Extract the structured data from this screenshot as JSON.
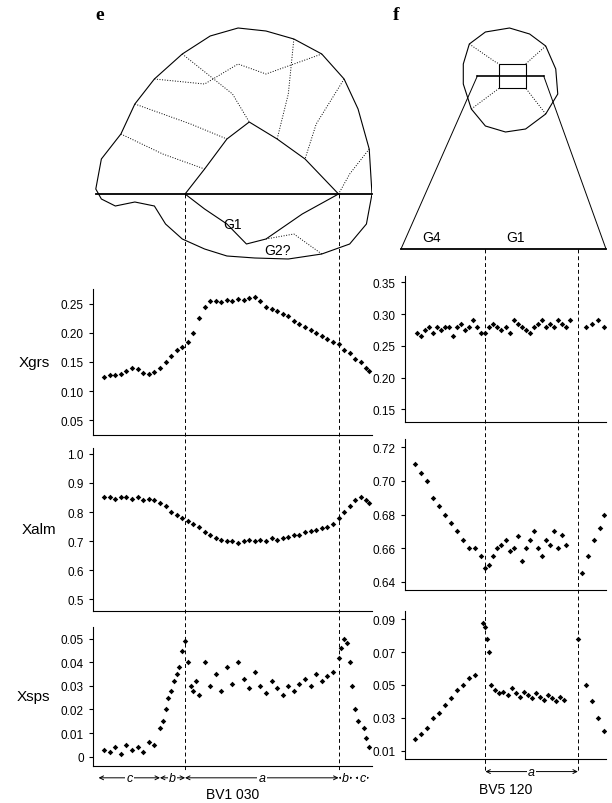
{
  "chart_data": [
    {
      "type": "scatter",
      "ylabel": "Xgrs",
      "color": "#000000",
      "marker": "diamond",
      "tick_labels": "y",
      "x": [
        4,
        6,
        8,
        10,
        12,
        14,
        16,
        18,
        20,
        22,
        24,
        26,
        28,
        30,
        32,
        34,
        36,
        38,
        40,
        42,
        44,
        46,
        48,
        50,
        52,
        54,
        56,
        58,
        60,
        62,
        64,
        66,
        68,
        70,
        72,
        74,
        76,
        78,
        80,
        82,
        84,
        86,
        88,
        90,
        92,
        94,
        96,
        98,
        99
      ],
      "values": [
        0.125,
        0.128,
        0.127,
        0.13,
        0.135,
        0.14,
        0.138,
        0.132,
        0.13,
        0.133,
        0.14,
        0.15,
        0.16,
        0.17,
        0.175,
        0.185,
        0.2,
        0.225,
        0.245,
        0.255,
        0.255,
        0.253,
        0.256,
        0.255,
        0.258,
        0.257,
        0.26,
        0.262,
        0.255,
        0.245,
        0.24,
        0.238,
        0.232,
        0.228,
        0.22,
        0.215,
        0.21,
        0.205,
        0.2,
        0.195,
        0.19,
        0.185,
        0.18,
        0.17,
        0.165,
        0.155,
        0.15,
        0.14,
        0.135
      ],
      "xlim": [
        0,
        100
      ],
      "ylim": [
        0.025,
        0.275
      ],
      "yticks": [
        0.05,
        {
          "value": 0.1,
          "label": "0.10"
        },
        0.15,
        {
          "value": 0.2,
          "label": "0.20"
        },
        0.25
      ]
    },
    {
      "type": "scatter",
      "ylabel": "Xalm",
      "color": "#000000",
      "marker": "diamond",
      "tick_labels": "y",
      "x": [
        4,
        6,
        8,
        10,
        12,
        14,
        16,
        18,
        20,
        22,
        24,
        26,
        28,
        30,
        32,
        34,
        36,
        38,
        40,
        42,
        44,
        46,
        48,
        50,
        52,
        54,
        56,
        58,
        60,
        62,
        64,
        66,
        68,
        70,
        72,
        74,
        76,
        78,
        80,
        82,
        84,
        86,
        88,
        90,
        92,
        94,
        96,
        98,
        99
      ],
      "values": [
        0.85,
        0.85,
        0.845,
        0.85,
        0.85,
        0.845,
        0.85,
        0.84,
        0.845,
        0.84,
        0.83,
        0.82,
        0.8,
        0.79,
        0.78,
        0.77,
        0.76,
        0.75,
        0.73,
        0.72,
        0.71,
        0.705,
        0.7,
        0.7,
        0.695,
        0.7,
        0.705,
        0.7,
        0.705,
        0.7,
        0.71,
        0.705,
        0.71,
        0.715,
        0.72,
        0.72,
        0.73,
        0.735,
        0.74,
        0.745,
        0.75,
        0.76,
        0.78,
        0.8,
        0.82,
        0.84,
        0.85,
        0.84,
        0.83
      ],
      "xlim": [
        0,
        100
      ],
      "ylim": [
        0.46,
        1.02
      ],
      "yticks": [
        0.5,
        0.6,
        0.7,
        0.8,
        0.9,
        1.0
      ]
    },
    {
      "type": "scatter",
      "ylabel": "Xsps",
      "color": "#000000",
      "marker": "diamond",
      "tick_labels": "y",
      "x": [
        4,
        6,
        8,
        10,
        12,
        14,
        16,
        18,
        20,
        22,
        24,
        25,
        26,
        27,
        28,
        29,
        30,
        31,
        32,
        33,
        34,
        35,
        36,
        37,
        38,
        40,
        42,
        44,
        46,
        48,
        50,
        52,
        54,
        56,
        58,
        60,
        62,
        64,
        66,
        68,
        70,
        72,
        74,
        76,
        78,
        80,
        82,
        84,
        86,
        88,
        89,
        90,
        91,
        92,
        93,
        94,
        95,
        97,
        98,
        99
      ],
      "values": [
        0.003,
        0.002,
        0.004,
        0.001,
        0.005,
        0.003,
        0.004,
        0.002,
        0.006,
        0.005,
        0.012,
        0.015,
        0.02,
        0.025,
        0.028,
        0.032,
        0.035,
        0.038,
        0.045,
        0.049,
        0.04,
        0.03,
        0.028,
        0.032,
        0.026,
        0.04,
        0.03,
        0.035,
        0.028,
        0.038,
        0.031,
        0.04,
        0.033,
        0.029,
        0.036,
        0.03,
        0.027,
        0.032,
        0.029,
        0.026,
        0.03,
        0.028,
        0.031,
        0.033,
        0.03,
        0.035,
        0.032,
        0.034,
        0.036,
        0.042,
        0.046,
        0.05,
        0.048,
        0.04,
        0.03,
        0.02,
        0.015,
        0.012,
        0.008,
        0.004
      ],
      "xlim": [
        0,
        100
      ],
      "ylim": [
        -0.004,
        0.055
      ],
      "yticks": [
        0,
        0.01,
        0.02,
        0.03,
        0.04,
        0.05
      ]
    },
    {
      "type": "scatter",
      "color": "#000000",
      "marker": "diamond",
      "tick_labels": "y",
      "x": [
        6,
        8,
        10,
        12,
        14,
        16,
        18,
        20,
        22,
        24,
        26,
        28,
        30,
        32,
        34,
        36,
        38,
        40,
        42,
        44,
        46,
        48,
        50,
        52,
        54,
        56,
        58,
        60,
        62,
        64,
        66,
        68,
        70,
        72,
        74,
        76,
        78,
        80,
        82,
        90,
        93,
        96,
        99
      ],
      "values": [
        0.27,
        0.265,
        0.275,
        0.28,
        0.27,
        0.28,
        0.275,
        0.28,
        0.28,
        0.265,
        0.28,
        0.285,
        0.275,
        0.28,
        0.29,
        0.28,
        0.27,
        0.27,
        0.28,
        0.285,
        0.28,
        0.275,
        0.28,
        0.27,
        0.29,
        0.285,
        0.28,
        0.275,
        0.27,
        0.28,
        0.285,
        0.29,
        0.28,
        0.285,
        0.28,
        0.29,
        0.285,
        0.28,
        0.29,
        0.28,
        0.285,
        0.29,
        0.28
      ],
      "xlim": [
        0,
        100
      ],
      "ylim": [
        0.13,
        0.36
      ],
      "yticks": [
        0.15,
        {
          "value": 0.2,
          "label": "0.20"
        },
        0.25,
        {
          "value": 0.3,
          "label": "0.30"
        },
        0.35
      ]
    },
    {
      "type": "scatter",
      "color": "#000000",
      "marker": "diamond",
      "tick_labels": "y",
      "x": [
        5,
        8,
        11,
        14,
        17,
        20,
        23,
        26,
        29,
        32,
        35,
        38,
        40,
        42,
        44,
        46,
        48,
        50,
        52,
        54,
        56,
        58,
        60,
        62,
        64,
        66,
        68,
        70,
        72,
        74,
        76,
        78,
        80,
        88,
        91,
        94,
        97,
        99
      ],
      "values": [
        0.71,
        0.705,
        0.7,
        0.69,
        0.685,
        0.68,
        0.675,
        0.67,
        0.665,
        0.66,
        0.66,
        0.655,
        0.648,
        0.65,
        0.655,
        0.66,
        0.662,
        0.665,
        0.658,
        0.66,
        0.667,
        0.652,
        0.66,
        0.665,
        0.67,
        0.66,
        0.655,
        0.665,
        0.662,
        0.67,
        0.66,
        0.668,
        0.662,
        0.645,
        0.655,
        0.665,
        0.672,
        0.68
      ],
      "xlim": [
        0,
        100
      ],
      "ylim": [
        0.635,
        0.725
      ],
      "yticks": [
        0.64,
        0.66,
        0.68,
        {
          "value": 0.7,
          "label": "0.70"
        },
        0.72
      ]
    },
    {
      "type": "scatter",
      "color": "#000000",
      "marker": "diamond",
      "tick_labels": "y",
      "x": [
        5,
        8,
        11,
        14,
        17,
        20,
        23,
        26,
        29,
        32,
        35,
        39,
        40,
        41,
        42,
        43,
        45,
        47,
        49,
        51,
        53,
        55,
        57,
        59,
        61,
        63,
        65,
        67,
        69,
        71,
        73,
        75,
        77,
        79,
        86,
        90,
        93,
        96,
        99
      ],
      "values": [
        0.017,
        0.02,
        0.024,
        0.03,
        0.033,
        0.038,
        0.042,
        0.047,
        0.05,
        0.054,
        0.056,
        0.088,
        0.085,
        0.078,
        0.07,
        0.05,
        0.047,
        0.045,
        0.046,
        0.044,
        0.048,
        0.045,
        0.043,
        0.046,
        0.044,
        0.042,
        0.045,
        0.043,
        0.041,
        0.044,
        0.042,
        0.04,
        0.043,
        0.041,
        0.078,
        0.05,
        0.04,
        0.03,
        0.022
      ],
      "xlim": [
        0,
        100
      ],
      "ylim": [
        0.005,
        0.095
      ],
      "yticks": [
        0.01,
        0.03,
        0.05,
        0.07,
        0.09
      ]
    }
  ],
  "panels": [
    {
      "label": "e",
      "sample": "BV1 030",
      "grains": [
        "G1",
        "G2?"
      ],
      "boundaries": [
        33,
        88
      ],
      "zones": [
        {
          "label": "c",
          "from": 2,
          "to": 24
        },
        {
          "label": "b",
          "from": 24,
          "to": 33
        },
        {
          "label": "a",
          "from": 33,
          "to": 88
        },
        {
          "label": "b",
          "from": 88,
          "to": 93
        },
        {
          "label": "c",
          "from": 94,
          "to": 99
        }
      ]
    },
    {
      "label": "f",
      "sample": "BV5 120",
      "grains": [
        "G4",
        "G1"
      ],
      "boundaries": [
        40,
        86
      ],
      "zones": [
        {
          "label": "a",
          "from": 40,
          "to": 86
        }
      ]
    }
  ]
}
